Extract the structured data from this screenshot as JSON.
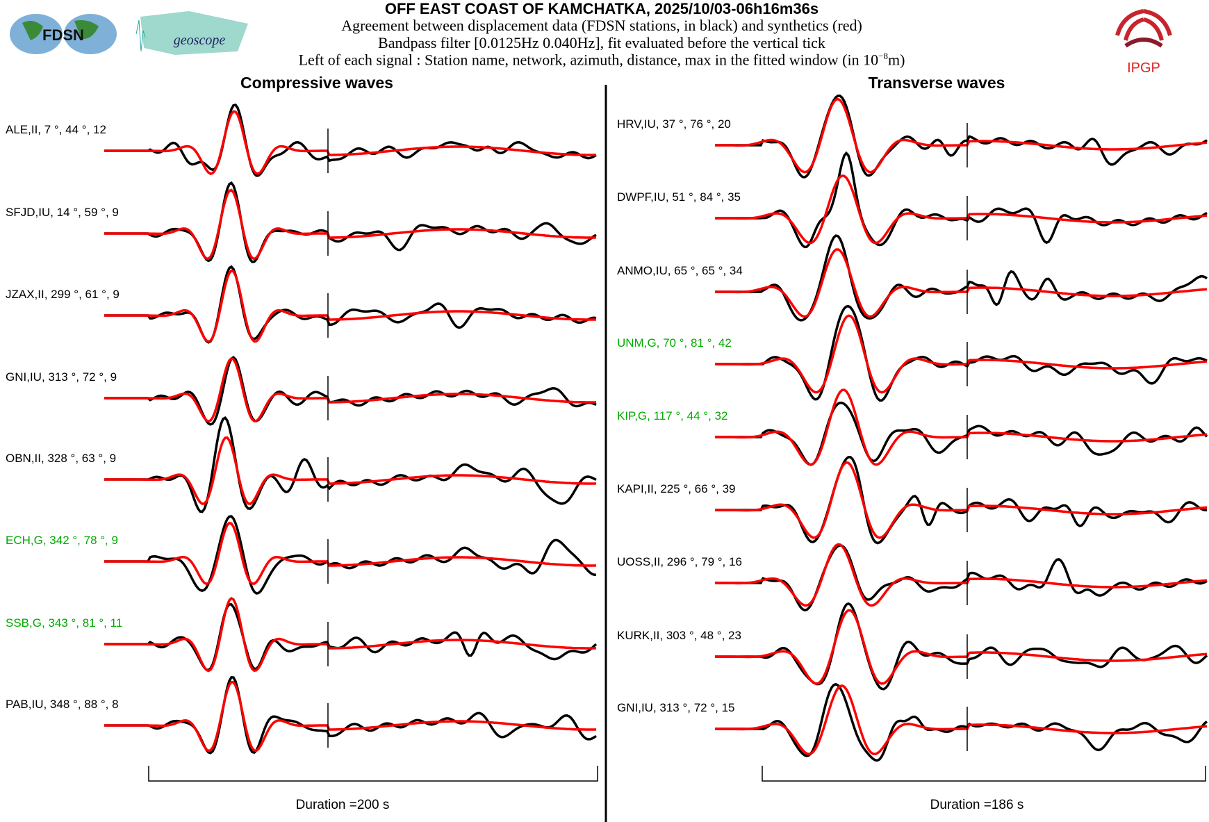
{
  "header": {
    "title": "OFF EAST COAST OF KAMCHATKA, 2025/10/03-06h16m36s",
    "line1": "Agreement between displacement data (FDSN stations, in black) and synthetics (red)",
    "line2": "Bandpass filter [0.0125Hz 0.040Hz], fit evaluated before the vertical tick",
    "line3": "Left of each signal : Station name, network, azimuth, distance, max in the fitted window (in 10",
    "line3_exp": "−8",
    "line3_end": "m)"
  },
  "logos": {
    "fdsn": "FDSN",
    "geoscope": "geoscope",
    "ipgp": "IPGP"
  },
  "colors": {
    "data": "#000000",
    "synthetic": "#ff0000",
    "geoscope_station": "#00aa00"
  },
  "chart_data": [
    {
      "type": "line",
      "title": "Compressive waves",
      "duration_label": "Duration =200 s",
      "duration_s": 200,
      "stations": [
        {
          "label": "ALE,II, 7 °, 44 °, 12",
          "network": "II",
          "green": false
        },
        {
          "label": "SFJD,IU, 14 °, 59 °, 9",
          "network": "IU",
          "green": false
        },
        {
          "label": "JZAX,II, 299 °, 61 °, 9",
          "network": "II",
          "green": false
        },
        {
          "label": "GNI,IU, 313 °, 72 °, 9",
          "network": "IU",
          "green": false
        },
        {
          "label": "OBN,II, 328 °, 63 °, 9",
          "network": "II",
          "green": false
        },
        {
          "label": "ECH,G, 342 °, 78 °, 9",
          "network": "G",
          "green": true
        },
        {
          "label": "SSB,G, 343 °, 81 °, 11",
          "network": "G",
          "green": true
        },
        {
          "label": "PAB,IU, 348 °, 88 °, 8",
          "network": "IU",
          "green": false
        }
      ]
    },
    {
      "type": "line",
      "title": "Transverse waves",
      "duration_label": "Duration =186 s",
      "duration_s": 186,
      "stations": [
        {
          "label": "HRV,IU, 37 °, 76 °, 20",
          "network": "IU",
          "green": false
        },
        {
          "label": "DWPF,IU, 51 °, 84 °, 35",
          "network": "IU",
          "green": false
        },
        {
          "label": "ANMO,IU, 65 °, 65 °, 34",
          "network": "IU",
          "green": false
        },
        {
          "label": "UNM,G, 70 °, 81 °, 42",
          "network": "G",
          "green": true
        },
        {
          "label": "KIP,G, 117 °, 44 °, 32",
          "network": "G",
          "green": true
        },
        {
          "label": "KAPI,II, 225 °, 66 °, 39",
          "network": "II",
          "green": false
        },
        {
          "label": "UOSS,II, 296 °, 79 °, 16",
          "network": "II",
          "green": false
        },
        {
          "label": "KURK,II, 303 °, 48 °, 23",
          "network": "II",
          "green": false
        },
        {
          "label": "GNI,IU, 313 °, 72 °, 15",
          "network": "IU",
          "green": false
        }
      ]
    }
  ]
}
